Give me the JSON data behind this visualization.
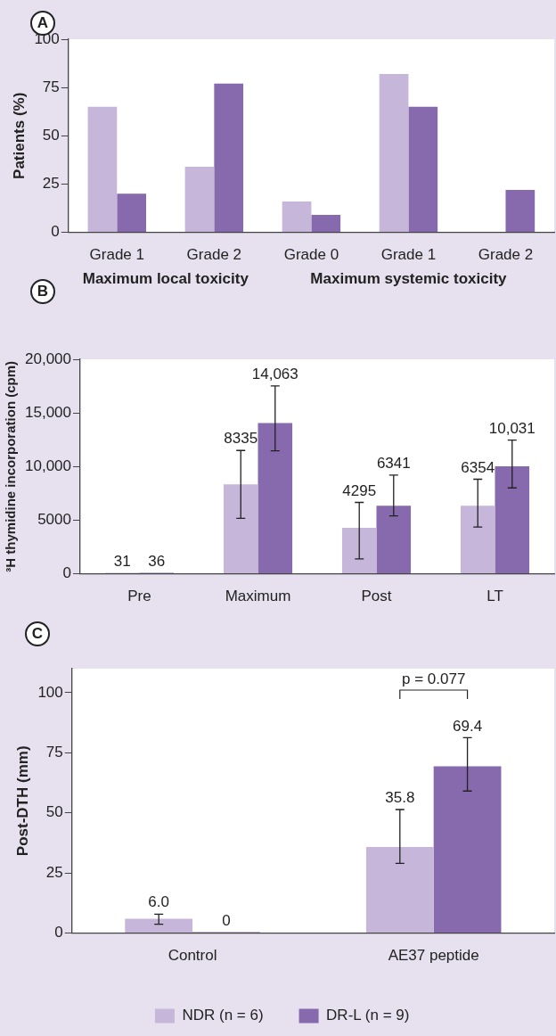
{
  "chart_data": [
    {
      "type": "bar",
      "title": "A",
      "ylabel": "Patients (%)",
      "categories": [
        "Grade 1",
        "Grade 2",
        "Grade 0",
        "Grade 1",
        "Grade 2"
      ],
      "series": [
        {
          "color": "#c5b6da",
          "values": [
            65,
            34,
            16,
            82,
            null
          ]
        },
        {
          "color": "#8769ad",
          "values": [
            20,
            77,
            9,
            65,
            22
          ]
        }
      ],
      "ylim": [
        0,
        100
      ],
      "yticks": [
        0,
        25,
        50,
        75,
        100
      ],
      "annotations": [
        "Maximum local toxicity",
        "Maximum systemic toxicity"
      ]
    },
    {
      "type": "bar",
      "title": "B",
      "ylabel": "³H thymidine incorporation (cpm)",
      "categories": [
        "Pre",
        "Maximum",
        "Post",
        "LT"
      ],
      "series": [
        {
          "color": "#c5b6da",
          "values": [
            31,
            8335,
            4295,
            6354
          ],
          "value_labels": [
            "31",
            "8335",
            "4295",
            "6354"
          ],
          "errors": [
            null,
            [
              5170,
              11500
            ],
            [
              1390,
              6660
            ],
            [
              4360,
              8820
            ]
          ]
        },
        {
          "color": "#8769ad",
          "values": [
            36,
            14063,
            6341,
            10031
          ],
          "value_labels": [
            "36",
            "14,063",
            "6341",
            "10,031"
          ],
          "errors": [
            null,
            [
              11470,
              17510
            ],
            [
              5400,
              9210
            ],
            [
              8010,
              12470
            ]
          ]
        }
      ],
      "ylim": [
        0,
        20000
      ],
      "yticks": [
        0,
        5000,
        {
          "value": 10000,
          "label": "10,000"
        },
        {
          "value": 15000,
          "label": "15,000"
        },
        {
          "value": 20000,
          "label": "20,000"
        }
      ]
    },
    {
      "type": "bar",
      "title": "C",
      "ylabel": "Post-DTH (mm)",
      "categories": [
        "Control",
        "AE37 peptide"
      ],
      "series": [
        {
          "name": "NDR (n = 6)",
          "color": "#c5b6da",
          "values": [
            6.0,
            35.8
          ],
          "value_labels": [
            "6.0",
            "35.8"
          ],
          "errors": [
            [
              3.7,
              7.9
            ],
            [
              29,
              51.4
            ]
          ]
        },
        {
          "name": "DR-L (n = 9)",
          "color": "#8769ad",
          "values": [
            0,
            69.4
          ],
          "value_labels": [
            "0",
            "69.4"
          ],
          "errors": [
            null,
            [
              59.1,
              81.3
            ]
          ]
        }
      ],
      "ylim": [
        0,
        110
      ],
      "yticks": [
        0,
        25,
        50,
        75,
        100
      ],
      "annotations": [
        "p = 0.077"
      ],
      "legend": "bottom"
    }
  ]
}
